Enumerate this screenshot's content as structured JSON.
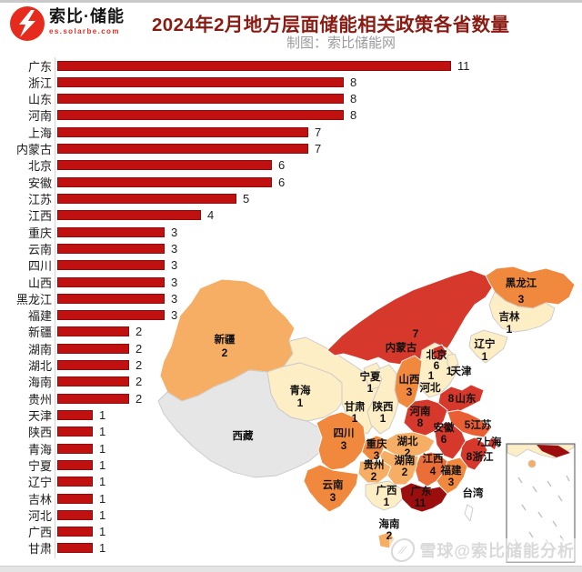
{
  "header": {
    "logo_text": "索比·储能",
    "logo_domain": "es.solarbe.com",
    "title": "2024年2月地方层面储能相关政策各省数量",
    "subtitle": "制图：索比储能网"
  },
  "watermark": {
    "icon": "xueqiu-snowball-icon",
    "text": "雪球@索比储能分析"
  },
  "colors": {
    "bar": "#c11010",
    "bar_border": "#8e0b0b",
    "title": "#8a1b12",
    "subtitle": "#9b9b9b",
    "logo_red": "#e62b1e",
    "axis": "#d6d6d6"
  },
  "chart_data": {
    "type": "bar",
    "orientation": "horizontal",
    "title": "2024年2月地方层面储能相关政策各省数量",
    "xlabel": "",
    "ylabel": "",
    "xlim": [
      0,
      11
    ],
    "value_labels": true,
    "grid": false,
    "bar_color": "#c11010",
    "categories": [
      "广东",
      "浙江",
      "山东",
      "河南",
      "上海",
      "内蒙古",
      "北京",
      "安徽",
      "江苏",
      "江西",
      "重庆",
      "云南",
      "四川",
      "山西",
      "黑龙江",
      "福建",
      "新疆",
      "湖南",
      "湖北",
      "海南",
      "贵州",
      "天津",
      "陕西",
      "青海",
      "宁夏",
      "辽宁",
      "吉林",
      "河北",
      "广西",
      "甘肃"
    ],
    "values": [
      11,
      8,
      8,
      8,
      7,
      7,
      6,
      6,
      5,
      4,
      3,
      3,
      3,
      3,
      3,
      3,
      2,
      2,
      2,
      2,
      2,
      1,
      1,
      1,
      1,
      1,
      1,
      1,
      1,
      1
    ]
  },
  "map": {
    "description": "China choropleth of policy counts",
    "scale_colors": {
      "no_data": "#e6e6e6",
      "island_no_data": "#ffffff",
      "v1": "#fdeec6",
      "v2": "#f6ad64",
      "v3": "#f0883d",
      "v4": "#eb6e38",
      "v5": "#e95f33",
      "v6_8": "#d6382b",
      "v11": "#9c0e0e"
    },
    "provinces": [
      {
        "name": "新疆",
        "value": 2
      },
      {
        "name": "西藏",
        "value": null
      },
      {
        "name": "甘肃",
        "value": 1
      },
      {
        "name": "青海",
        "value": 1
      },
      {
        "name": "内蒙古",
        "value": 7
      },
      {
        "name": "宁夏",
        "value": 1
      },
      {
        "name": "黑龙江",
        "value": 3
      },
      {
        "name": "吉林",
        "value": 1
      },
      {
        "name": "辽宁",
        "value": 1
      },
      {
        "name": "河北",
        "value": 1
      },
      {
        "name": "北京",
        "value": 6
      },
      {
        "name": "天津",
        "value": 1
      },
      {
        "name": "山西",
        "value": 3
      },
      {
        "name": "山东",
        "value": 8
      },
      {
        "name": "河南",
        "value": 8
      },
      {
        "name": "陕西",
        "value": 1
      },
      {
        "name": "四川",
        "value": 3
      },
      {
        "name": "重庆",
        "value": 3
      },
      {
        "name": "湖北",
        "value": 2
      },
      {
        "name": "安徽",
        "value": 6
      },
      {
        "name": "江苏",
        "value": 5
      },
      {
        "name": "上海",
        "value": 7
      },
      {
        "name": "浙江",
        "value": 8
      },
      {
        "name": "江西",
        "value": 4
      },
      {
        "name": "湖南",
        "value": 2
      },
      {
        "name": "贵州",
        "value": 2
      },
      {
        "name": "云南",
        "value": 3
      },
      {
        "name": "广西",
        "value": 1
      },
      {
        "name": "广东",
        "value": 11
      },
      {
        "name": "福建",
        "value": 3
      },
      {
        "name": "海南",
        "value": 2
      },
      {
        "name": "台湾",
        "value": null
      }
    ]
  }
}
